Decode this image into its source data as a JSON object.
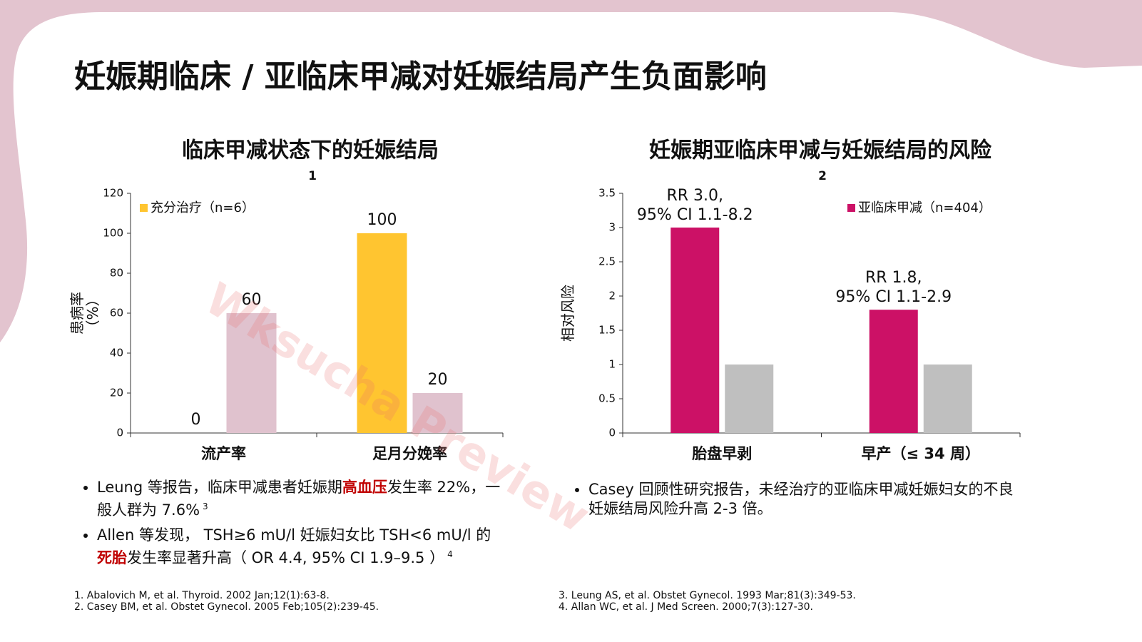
{
  "title": "妊娠期临床 / 亚临床甲减对妊娠结局产生负面影响",
  "chart_data": [
    {
      "type": "bar",
      "title": "临床甲减状态下的妊娠结局",
      "title_note": "1",
      "ylabel": [
        "患病率",
        "（%）"
      ],
      "categories": [
        "流产率",
        "足月分娩率"
      ],
      "series": [
        {
          "name": "充分治疗（n=6）",
          "color": "#ffc530",
          "values": [
            0,
            100
          ]
        },
        {
          "color": "#e0c2ce",
          "values": [
            60,
            20
          ]
        }
      ],
      "ylim": [
        0,
        120
      ],
      "yticks": [
        0,
        20,
        40,
        60,
        80,
        100,
        120
      ],
      "grid": false,
      "show_values": true,
      "legend": "upper left"
    },
    {
      "type": "bar",
      "title": "妊娠期亚临床甲减与妊娠结局的风险",
      "title_note": "2",
      "ylabel": [
        "相对风险"
      ],
      "categories": [
        "胎盘早剥",
        "早产（≤ 34 周）"
      ],
      "series": [
        {
          "name": "亚临床甲减（n=404）",
          "color": "#cc1166",
          "values": [
            3.0,
            1.8
          ]
        },
        {
          "color": "#bfbfbf",
          "values": [
            1,
            1
          ]
        }
      ],
      "annotations": [
        [
          "RR 3.0,",
          "95% CI 1.1-8.2"
        ],
        [
          "RR 1.8,",
          "95% CI 1.1-2.9"
        ]
      ],
      "ylim": [
        0,
        3.5
      ],
      "yticks": [
        0,
        0.5,
        1,
        1.5,
        2,
        2.5,
        3,
        3.5
      ],
      "grid": false,
      "show_values": false,
      "legend": "upper right"
    }
  ],
  "bullets_left": [
    [
      {
        "text": "Leung 等报告，临床甲减患者妊娠期"
      },
      {
        "text": "高血压",
        "highlight": true
      },
      {
        "text": "发生率 22%，一般人群为 7.6%"
      },
      {
        "text": "3",
        "sup": true
      }
    ],
    [
      {
        "text": "Allen 等发现， TSH≥6 mU/l 妊娠妇女比 TSH<6 mU/l 的"
      },
      {
        "text": "死胎",
        "highlight": true
      },
      {
        "text": "发生率显著升高（ OR 4.4, 95% CI 1.9–9.5 ）"
      },
      {
        "text": "4",
        "sup": true
      }
    ]
  ],
  "bullets_right": [
    [
      {
        "text": "Casey 回顾性研究报告，未经治疗的亚临床甲减妊娠妇女的不良妊娠结局风险升高 2-3 倍。"
      }
    ]
  ],
  "references_left": [
    "1. Abalovich M, et al. Thyroid. 2002 Jan;12(1):63-8.",
    "2. Casey BM, et al. Obstet Gynecol. 2005 Feb;105(2):239-45."
  ],
  "references_right": [
    "3. Leung AS, et al. Obstet Gynecol. 1993 Mar;81(3):349-53.",
    "4. Allan WC, et al. J Med Screen. 2000;7(3):127-30."
  ],
  "watermark": "Wksucha Preview"
}
